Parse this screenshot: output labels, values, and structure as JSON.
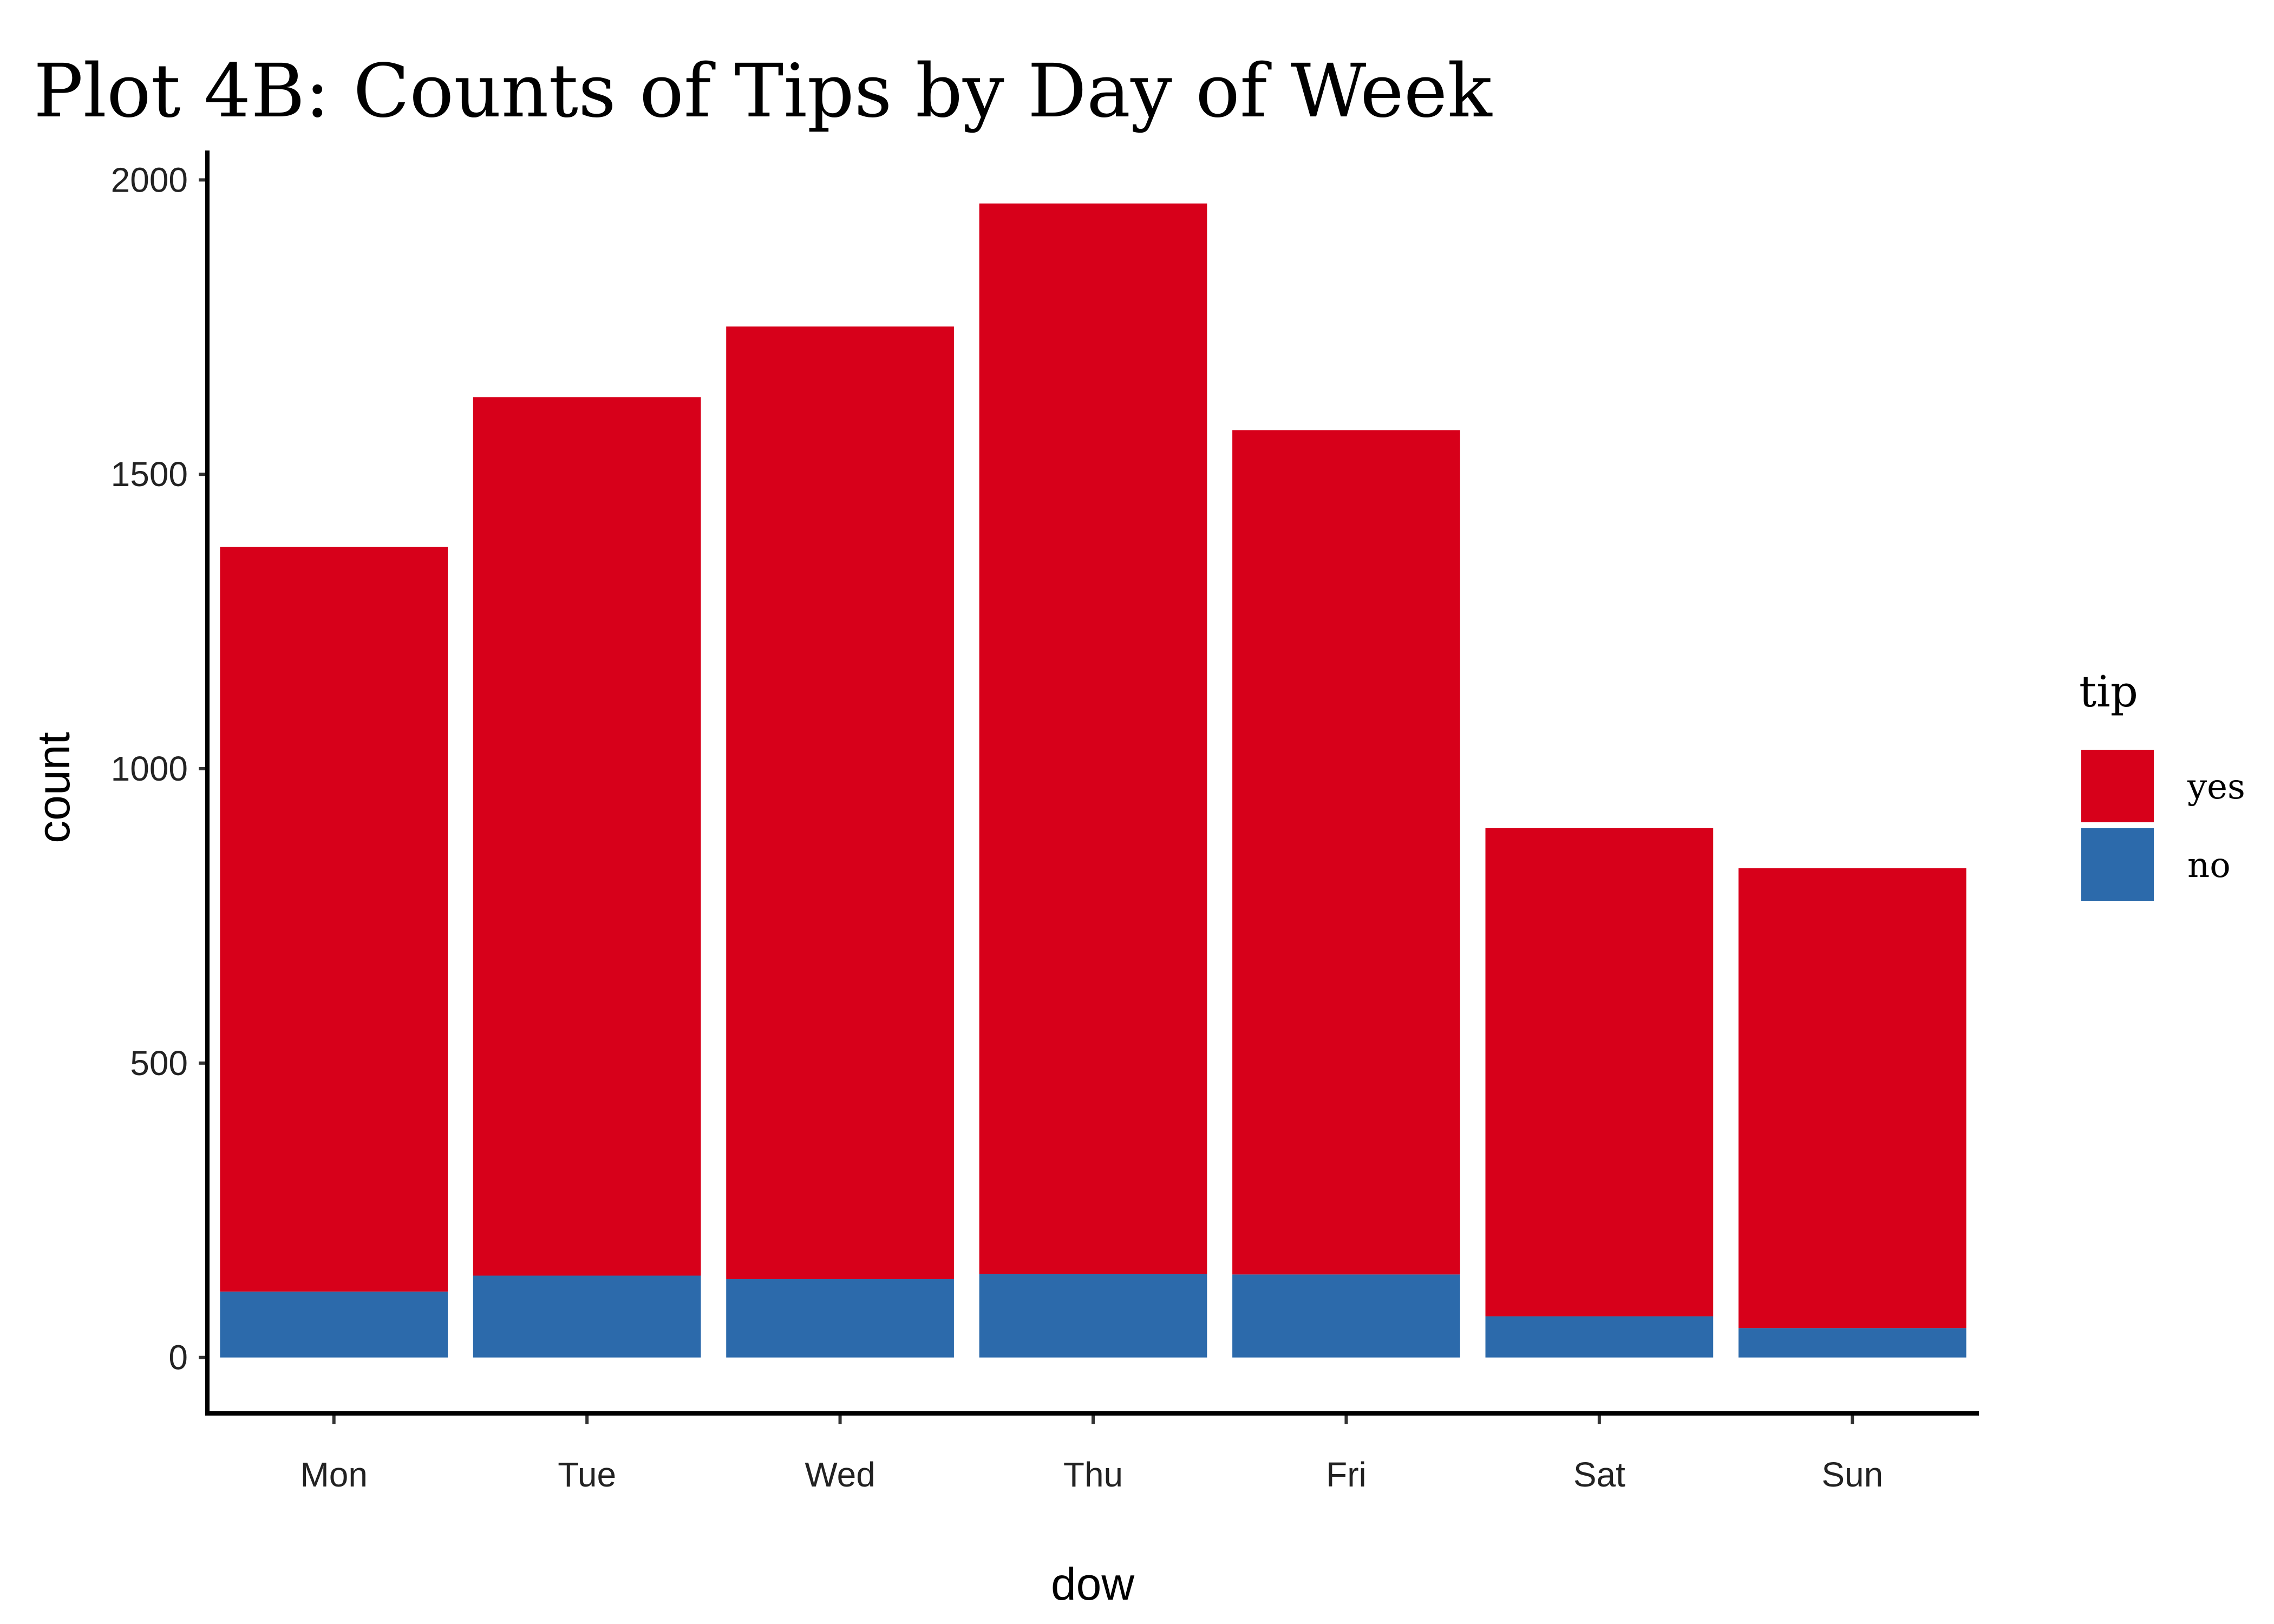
{
  "chart_data": {
    "type": "bar",
    "stacked": true,
    "title": "Plot 4B: Counts of Tips by Day of Week",
    "xlabel": "dow",
    "ylabel": "count",
    "categories": [
      "Mon",
      "Tue",
      "Wed",
      "Thu",
      "Fri",
      "Sat",
      "Sun"
    ],
    "ylim": [
      -95,
      2050
    ],
    "yticks": [
      0,
      500,
      1000,
      1500,
      2000
    ],
    "series": [
      {
        "name": "no",
        "color": "#2c6aab",
        "values": [
          112,
          139,
          133,
          142,
          141,
          70,
          50
        ]
      },
      {
        "name": "yes",
        "color": "#d7001a",
        "values": [
          1265,
          1492,
          1618,
          1818,
          1434,
          829,
          781
        ]
      }
    ],
    "legend": {
      "title": "tip",
      "position": "right",
      "entries": [
        {
          "label": "yes",
          "color": "#d7001a"
        },
        {
          "label": "no",
          "color": "#2c6aab"
        }
      ]
    },
    "grid": false
  }
}
